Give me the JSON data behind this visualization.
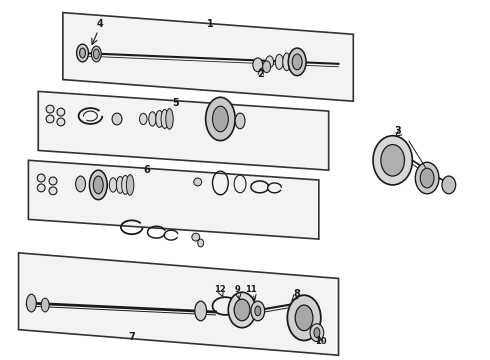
{
  "bg_color": "#ffffff",
  "line_color": "#1a1a1a",
  "panel_fill": "#f8f8f8",
  "panel_stroke": "#333333",
  "part3_fill": "#e8e8e8",
  "shadow_color": "#cccccc"
}
